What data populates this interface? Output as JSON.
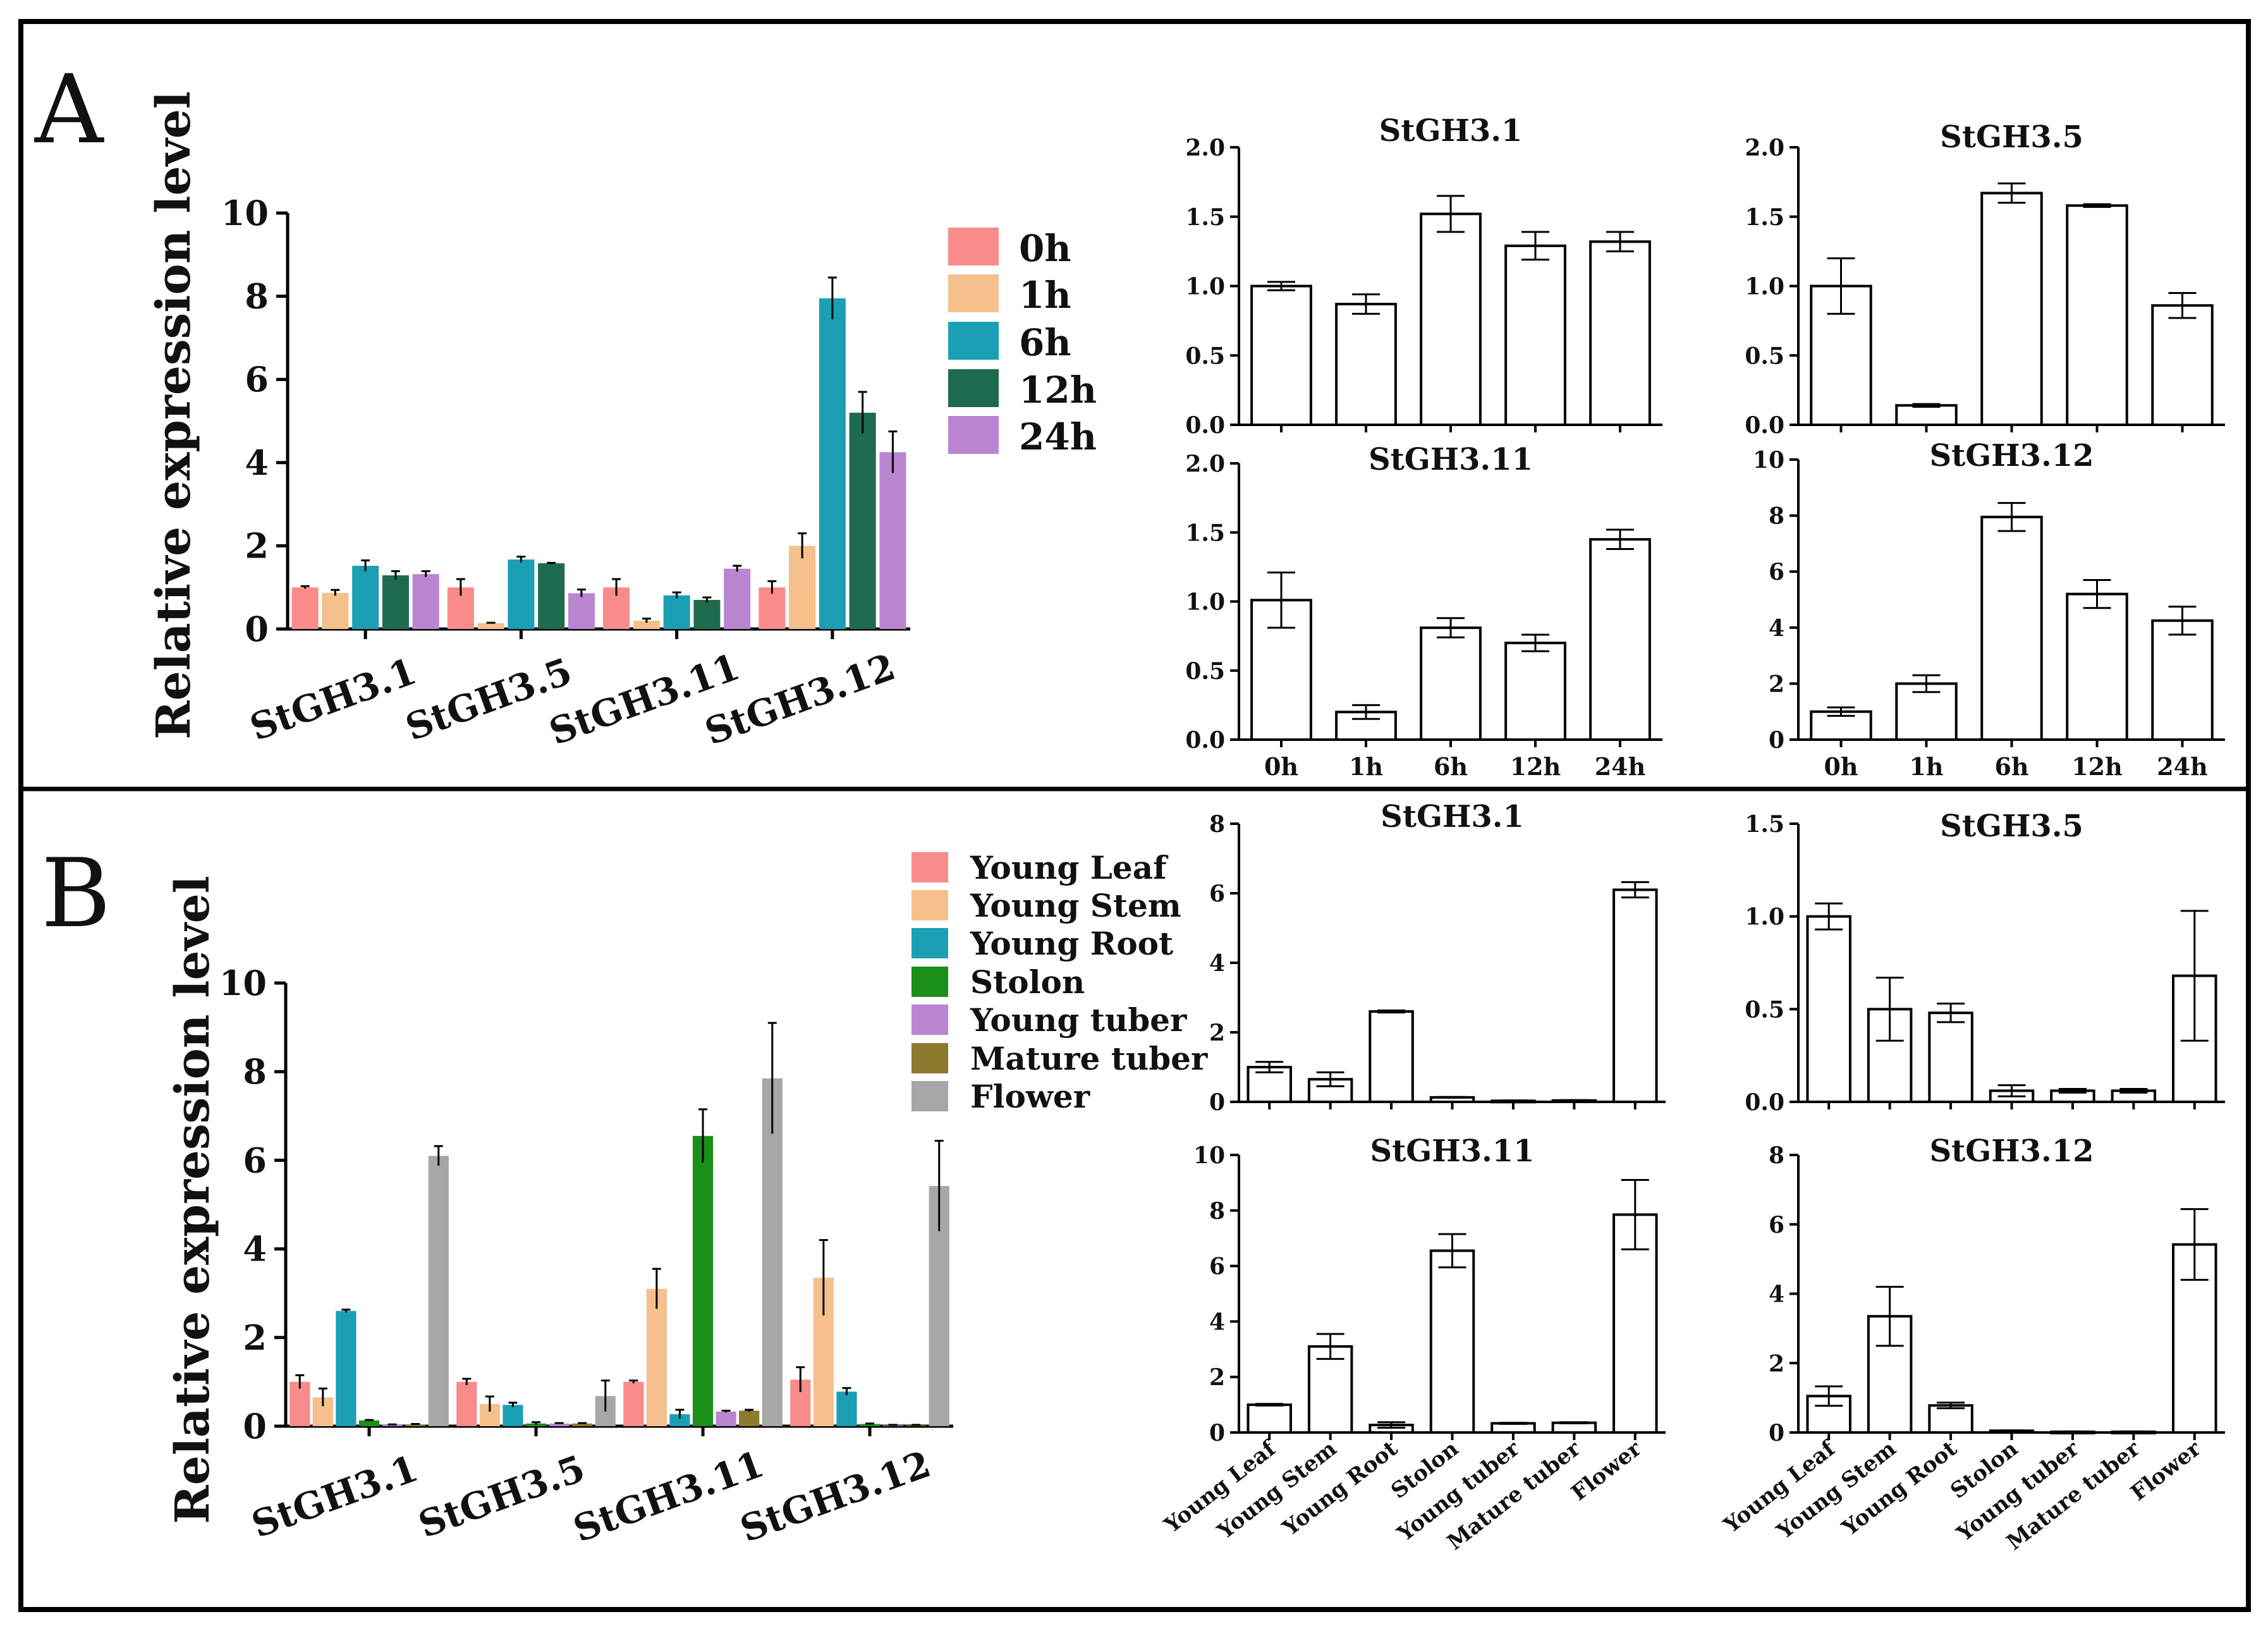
{
  "panels": {
    "A": {
      "letter": "A",
      "main": {
        "ylabel": "Relative expression level",
        "ylim": [
          0,
          10
        ],
        "yticks": [
          0,
          2,
          4,
          6,
          8,
          10
        ],
        "legend_title_none": "",
        "legend": [
          {
            "label": "0h",
            "color": "#f98b8b"
          },
          {
            "label": "1h",
            "color": "#f5c08c"
          },
          {
            "label": "6h",
            "color": "#1b9fb5"
          },
          {
            "label": "12h",
            "color": "#1d6b4c"
          },
          {
            "label": "24h",
            "color": "#b985d1"
          }
        ]
      }
    },
    "B": {
      "letter": "B",
      "main": {
        "ylabel": "Relative expression level",
        "ylim": [
          0,
          10
        ],
        "yticks": [
          0,
          2,
          4,
          6,
          8,
          10
        ],
        "legend": [
          {
            "label": "Young Leaf",
            "color": "#f98b8b"
          },
          {
            "label": "Young Stem",
            "color": "#f5c08c"
          },
          {
            "label": "Young Root",
            "color": "#1b9fb5"
          },
          {
            "label": "Stolon",
            "color": "#1a8f1a"
          },
          {
            "label": "Young tuber",
            "color": "#b985d1"
          },
          {
            "label": "Mature tuber",
            "color": "#8c7a2e"
          },
          {
            "label": "Flower",
            "color": "#a7a7a7"
          }
        ]
      }
    }
  },
  "chart_data": [
    {
      "id": "A-main",
      "type": "bar",
      "title": "",
      "ylabel": "Relative expression level",
      "ylim": [
        0,
        10
      ],
      "categories": [
        "StGH3.1",
        "StGH3.5",
        "StGH3.11",
        "StGH3.12"
      ],
      "series": [
        {
          "name": "0h",
          "values": [
            1.0,
            1.0,
            1.0,
            1.0
          ],
          "errors": [
            0.03,
            0.2,
            0.2,
            0.15
          ]
        },
        {
          "name": "1h",
          "values": [
            0.87,
            0.14,
            0.2,
            2.0
          ],
          "errors": [
            0.07,
            0.01,
            0.05,
            0.3
          ]
        },
        {
          "name": "6h",
          "values": [
            1.52,
            1.67,
            0.81,
            7.95
          ],
          "errors": [
            0.13,
            0.07,
            0.07,
            0.5
          ]
        },
        {
          "name": "12h",
          "values": [
            1.29,
            1.58,
            0.7,
            5.2
          ],
          "errors": [
            0.1,
            0.01,
            0.06,
            0.5
          ]
        },
        {
          "name": "24h",
          "values": [
            1.32,
            0.86,
            1.45,
            4.25
          ],
          "errors": [
            0.07,
            0.09,
            0.07,
            0.5
          ]
        }
      ]
    },
    {
      "id": "A-StGH3.1",
      "type": "bar",
      "title": "StGH3.1",
      "ylim": [
        0,
        2.0
      ],
      "yticks": [
        "0.0",
        "0.5",
        "1.0",
        "1.5",
        "2.0"
      ],
      "categories": [
        "0h",
        "1h",
        "6h",
        "12h",
        "24h"
      ],
      "values": [
        1.0,
        0.87,
        1.52,
        1.29,
        1.32
      ],
      "errors": [
        0.03,
        0.07,
        0.13,
        0.1,
        0.07
      ]
    },
    {
      "id": "A-StGH3.5",
      "type": "bar",
      "title": "StGH3.5",
      "ylim": [
        0,
        2.0
      ],
      "yticks": [
        "0.0",
        "0.5",
        "1.0",
        "1.5",
        "2.0"
      ],
      "categories": [
        "0h",
        "1h",
        "6h",
        "12h",
        "24h"
      ],
      "values": [
        1.0,
        0.14,
        1.67,
        1.58,
        0.86
      ],
      "errors": [
        0.2,
        0.01,
        0.07,
        0.01,
        0.09
      ]
    },
    {
      "id": "A-StGH3.11",
      "type": "bar",
      "title": "StGH3.11",
      "ylim": [
        0,
        2.0
      ],
      "yticks": [
        "0.0",
        "0.5",
        "1.0",
        "1.5",
        "2.0"
      ],
      "categories": [
        "0h",
        "1h",
        "6h",
        "12h",
        "24h"
      ],
      "values": [
        1.01,
        0.2,
        0.81,
        0.7,
        1.45
      ],
      "errors": [
        0.2,
        0.05,
        0.07,
        0.06,
        0.07
      ]
    },
    {
      "id": "A-StGH3.12",
      "type": "bar",
      "title": "StGH3.12",
      "ylim": [
        0,
        10
      ],
      "yticks": [
        "0",
        "2",
        "4",
        "6",
        "8",
        "10"
      ],
      "categories": [
        "0h",
        "1h",
        "6h",
        "12h",
        "24h"
      ],
      "values": [
        1.0,
        2.0,
        7.95,
        5.2,
        4.25
      ],
      "errors": [
        0.15,
        0.3,
        0.5,
        0.5,
        0.5
      ]
    },
    {
      "id": "B-main",
      "type": "bar",
      "title": "",
      "ylabel": "Relative expression level",
      "ylim": [
        0,
        10
      ],
      "categories": [
        "StGH3.1",
        "StGH3.5",
        "StGH3.11",
        "StGH3.12"
      ],
      "series": [
        {
          "name": "Young Leaf",
          "values": [
            1.0,
            1.0,
            1.0,
            1.05
          ],
          "errors": [
            0.15,
            0.07,
            0.03,
            0.28
          ]
        },
        {
          "name": "Young Stem",
          "values": [
            0.65,
            0.5,
            3.1,
            3.35
          ],
          "errors": [
            0.2,
            0.17,
            0.45,
            0.85
          ]
        },
        {
          "name": "Young Root",
          "values": [
            2.6,
            0.48,
            0.27,
            0.78
          ],
          "errors": [
            0.03,
            0.05,
            0.1,
            0.08
          ]
        },
        {
          "name": "Stolon",
          "values": [
            0.13,
            0.06,
            6.55,
            0.05
          ],
          "errors": [
            0.01,
            0.03,
            0.6,
            0.01
          ]
        },
        {
          "name": "Young tuber",
          "values": [
            0.03,
            0.06,
            0.33,
            0.02
          ],
          "errors": [
            0.01,
            0.01,
            0.02,
            0.01
          ]
        },
        {
          "name": "Mature tuber",
          "values": [
            0.04,
            0.06,
            0.35,
            0.02
          ],
          "errors": [
            0.01,
            0.01,
            0.02,
            0.01
          ]
        },
        {
          "name": "Flower",
          "values": [
            6.1,
            0.68,
            7.85,
            5.42
          ],
          "errors": [
            0.22,
            0.35,
            1.25,
            1.02
          ]
        }
      ]
    },
    {
      "id": "B-StGH3.1",
      "type": "bar",
      "title": "StGH3.1",
      "ylim": [
        0,
        8
      ],
      "yticks": [
        "0",
        "2",
        "4",
        "6",
        "8"
      ],
      "categories": [
        "Young Leaf",
        "Young Stem",
        "Young Root",
        "Stolon",
        "Young tuber",
        "Mature tuber",
        "Flower"
      ],
      "values": [
        1.0,
        0.65,
        2.6,
        0.13,
        0.03,
        0.04,
        6.1
      ],
      "errors": [
        0.15,
        0.2,
        0.03,
        0.01,
        0.01,
        0.01,
        0.22
      ]
    },
    {
      "id": "B-StGH3.5",
      "type": "bar",
      "title": "StGH3.5",
      "ylim": [
        0,
        1.5
      ],
      "yticks": [
        "0.0",
        "0.5",
        "1.0",
        "1.5"
      ],
      "categories": [
        "Young Leaf",
        "Young Stem",
        "Young Root",
        "Stolon",
        "Young tuber",
        "Mature tuber",
        "Flower"
      ],
      "values": [
        1.0,
        0.5,
        0.48,
        0.06,
        0.06,
        0.06,
        0.68
      ],
      "errors": [
        0.07,
        0.17,
        0.05,
        0.03,
        0.01,
        0.01,
        0.35
      ]
    },
    {
      "id": "B-StGH3.11",
      "type": "bar",
      "title": "StGH3.11",
      "ylim": [
        0,
        10
      ],
      "yticks": [
        "0",
        "2",
        "4",
        "6",
        "8",
        "10"
      ],
      "categories": [
        "Young Leaf",
        "Young Stem",
        "Young Root",
        "Stolon",
        "Young tuber",
        "Mature tuber",
        "Flower"
      ],
      "values": [
        1.0,
        3.1,
        0.27,
        6.55,
        0.33,
        0.35,
        7.85
      ],
      "errors": [
        0.03,
        0.45,
        0.1,
        0.6,
        0.02,
        0.02,
        1.25
      ]
    },
    {
      "id": "B-StGH3.12",
      "type": "bar",
      "title": "StGH3.12",
      "ylim": [
        0,
        8
      ],
      "yticks": [
        "0",
        "2",
        "4",
        "6",
        "8"
      ],
      "categories": [
        "Young Leaf",
        "Young Stem",
        "Young Root",
        "Stolon",
        "Young tuber",
        "Mature tuber",
        "Flower"
      ],
      "values": [
        1.05,
        3.35,
        0.78,
        0.05,
        0.02,
        0.02,
        5.42
      ],
      "errors": [
        0.28,
        0.85,
        0.08,
        0.01,
        0.01,
        0.01,
        1.02
      ]
    }
  ]
}
